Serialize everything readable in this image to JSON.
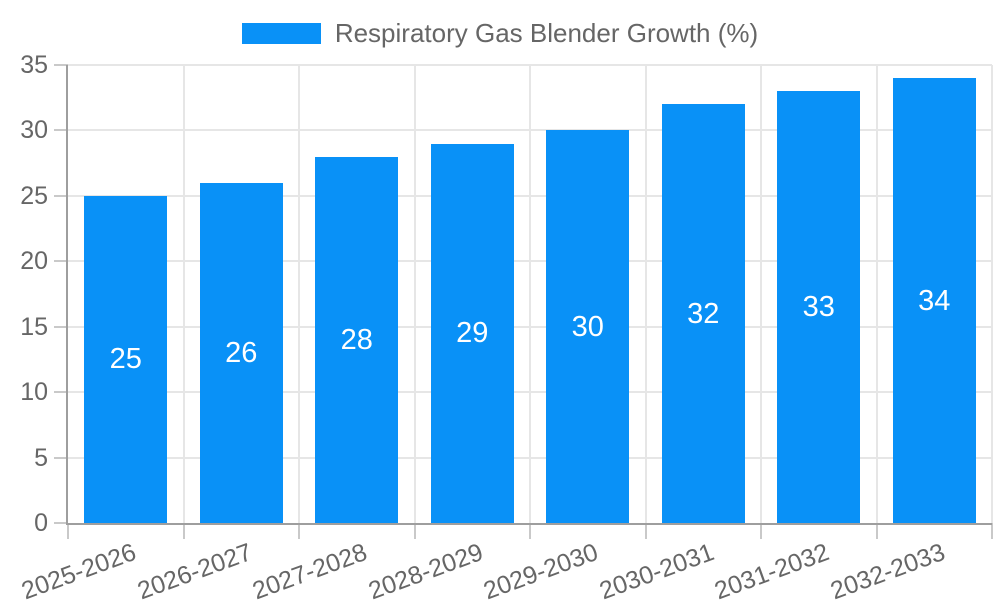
{
  "legend": {
    "label": "Respiratory Gas Blender Growth (%)"
  },
  "chart_data": {
    "type": "bar",
    "title": "Respiratory Gas Blender Growth (%)",
    "categories": [
      "2025-2026",
      "2026-2027",
      "2027-2028",
      "2028-2029",
      "2029-2030",
      "2030-2031",
      "2031-2032",
      "2032-2033"
    ],
    "values": [
      25,
      26,
      28,
      29,
      30,
      32,
      33,
      34
    ],
    "value_labels": [
      "25",
      "26",
      "28",
      "29",
      "30",
      "32",
      "33",
      "34"
    ],
    "xlabel": "",
    "ylabel": "",
    "ylim": [
      0,
      35
    ],
    "yticks": [
      0,
      5,
      10,
      15,
      20,
      25,
      30,
      35
    ],
    "grid": true,
    "legend_position": "top",
    "colors": {
      "bar": "#0991f7",
      "value_label": "#ffffff",
      "tick_label": "#666666",
      "gridline": "#e6e6e6",
      "axis_border": "#9e9e9e",
      "tick_mark": "#c9c9c9",
      "background": "#ffffff"
    }
  }
}
